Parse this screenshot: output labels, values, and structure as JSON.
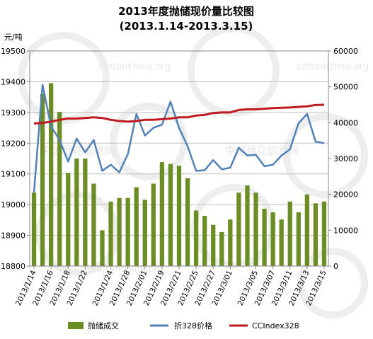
{
  "chart_data": {
    "type": "bar",
    "title": "2013年度抛储现价量比较图",
    "subtitle": "(2013.1.14-2013.3.15)",
    "ylabel_left": "元/吨",
    "ylim_left": [
      18800,
      19500
    ],
    "yticks_left": [
      18800,
      18900,
      19000,
      19100,
      19200,
      19300,
      19400,
      19500
    ],
    "ylim_right": [
      0,
      60000
    ],
    "yticks_right": [
      0,
      10000,
      20000,
      30000,
      40000,
      50000,
      60000
    ],
    "x_tick_labels": [
      "2013/1/14",
      "2013/1/16",
      "2013/1/18",
      "2013/1/22",
      "2013/1/24",
      "2013/1/28",
      "2013/2/01",
      "2013/2/19",
      "2013/2/21",
      "2013/2/25",
      "2013/2/27",
      "2013/3/01",
      "2013/3/05",
      "2013/3/07",
      "2013/3/11",
      "2013/3/13",
      "2013/3/15"
    ],
    "grid": true,
    "legend_position": "bottom",
    "series": [
      {
        "name": "抛储成交",
        "type": "bar",
        "axis": "right",
        "color": "#6b8e23",
        "values": [
          20500,
          48000,
          51000,
          43000,
          26000,
          30000,
          30000,
          23000,
          10000,
          18000,
          19000,
          19000,
          22000,
          18500,
          23000,
          29000,
          28500,
          28000,
          24500,
          15500,
          14000,
          11500,
          9500,
          13000,
          20500,
          22500,
          20500,
          16000,
          15000,
          13000,
          18000,
          15000,
          20000,
          17500,
          18000
        ]
      },
      {
        "name": "折328价格",
        "type": "line",
        "axis": "left",
        "color": "#4f81bd",
        "values": [
          19040,
          19390,
          19255,
          19210,
          19140,
          19215,
          19170,
          19210,
          19110,
          19130,
          19105,
          19165,
          19295,
          19225,
          19250,
          19260,
          19335,
          19250,
          19190,
          19110,
          19112,
          19145,
          19115,
          19120,
          19185,
          19160,
          19162,
          19125,
          19130,
          19160,
          19180,
          19265,
          19295,
          19205,
          19200
        ]
      },
      {
        "name": "CCIndex328",
        "type": "line",
        "axis": "left",
        "color": "#c0191f",
        "values": [
          19264,
          19266,
          19270,
          19276,
          19280,
          19280,
          19282,
          19284,
          19282,
          19276,
          19272,
          19270,
          19272,
          19276,
          19276,
          19278,
          19280,
          19284,
          19284,
          19290,
          19292,
          19298,
          19300,
          19300,
          19308,
          19310,
          19310,
          19312,
          19314,
          19315,
          19316,
          19318,
          19320,
          19324,
          19325
        ]
      }
    ]
  },
  "watermarks": [
    "cottonchina.org",
    "cottonchina.org",
    "cottonchina.org",
    "中国棉花信息网",
    "中国棉花信息网"
  ]
}
